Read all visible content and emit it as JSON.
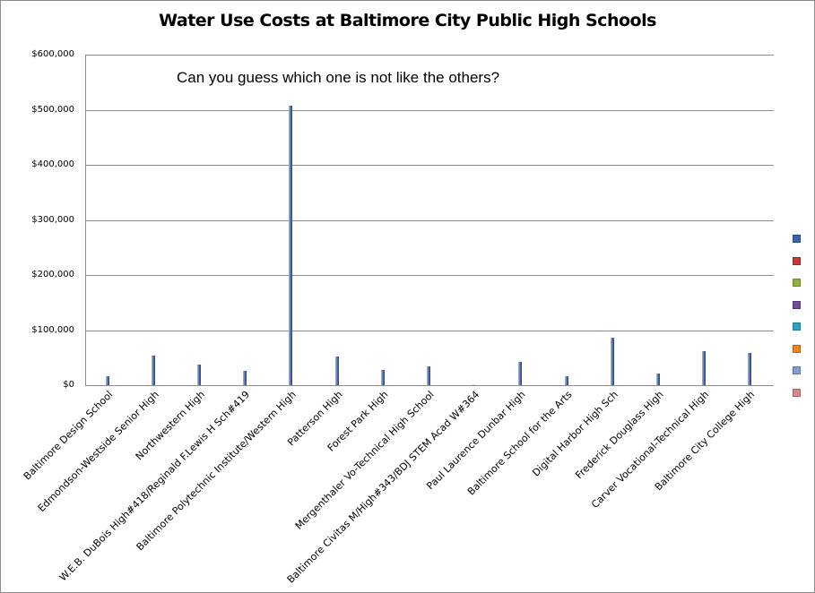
{
  "chart_data": {
    "type": "bar",
    "title": "Water Use Costs at Baltimore City Public High Schools",
    "annotation": "Can you guess which one is not like the others?",
    "xlabel": "",
    "ylabel": "",
    "ylim": [
      0,
      600000
    ],
    "yticks": [
      "$600,000",
      "$500,000",
      "$400,000",
      "$300,000",
      "$200,000",
      "$100,000",
      "$0"
    ],
    "grid": true,
    "legend_position": "right",
    "categories": [
      "Baltimore Design School",
      "Edmondson-Westside Senior High",
      "Northwestern High",
      "W.E.B. DuBois High#418/Reginald F.Lewis H Sch#419",
      "Baltimore Polytechnic Institute/Western High",
      "Patterson High",
      "Forest Park High",
      "Mergenthaler Vo-Technical High School",
      "Baltimore Civitas M/High#343/BDJ STEM Acad W#364",
      "Paul Laurence Dunbar High",
      "Baltimore School for the Arts",
      "Digital Harbor High Sch",
      "Frederick Douglass High",
      "Carver Vocational-Technical High",
      "Baltimore City College High"
    ],
    "values": [
      17000,
      53000,
      37000,
      25500,
      507000,
      51500,
      27500,
      33500,
      1000,
      42000,
      17000,
      86000,
      21500,
      61000,
      59000
    ],
    "series_color": "#4a6a9a",
    "legend_swatches": [
      "#3b63a8",
      "#c0393b",
      "#8fb13d",
      "#6f4e9e",
      "#2ea3bf",
      "#e8862a",
      "#7f9fd4",
      "#d48a8a"
    ]
  }
}
